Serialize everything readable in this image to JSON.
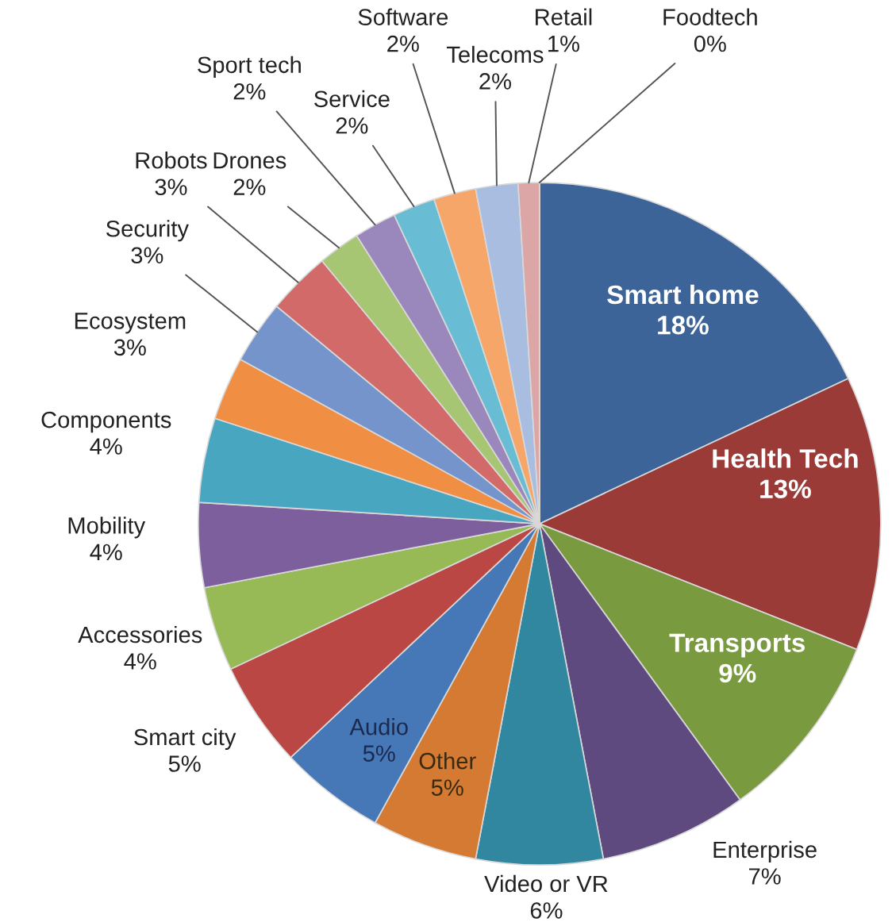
{
  "chart_data": {
    "type": "pie",
    "categories": [
      "Smart home",
      "Health Tech",
      "Transports",
      "Enterprise",
      "Video or VR",
      "Other",
      "Audio",
      "Smart city",
      "Accessories",
      "Mobility",
      "Components",
      "Ecosystem",
      "Security",
      "Robots",
      "Drones",
      "Sport tech",
      "Service",
      "Software",
      "Telecoms",
      "Retail",
      "Foodtech"
    ],
    "values": [
      18,
      13,
      9,
      7,
      6,
      5,
      5,
      5,
      4,
      4,
      4,
      3,
      3,
      3,
      2,
      2,
      2,
      2,
      2,
      1,
      0
    ],
    "value_labels": [
      "18%",
      "13%",
      "9%",
      "7%",
      "6%",
      "5%",
      "5%",
      "5%",
      "4%",
      "4%",
      "4%",
      "3%",
      "3%",
      "3%",
      "2%",
      "2%",
      "2%",
      "2%",
      "2%",
      "1%",
      "0%"
    ],
    "colors": [
      "#3d6499",
      "#9b3b38",
      "#7a9a3f",
      "#5f4a80",
      "#31879f",
      "#d47a33",
      "#4677b6",
      "#bb4744",
      "#97b956",
      "#7c5f9c",
      "#48a6c0",
      "#f08f44",
      "#7594cc",
      "#d26a69",
      "#a7c673",
      "#9a87bb",
      "#68bcd4",
      "#f7a66a",
      "#a8bde0",
      "#dca6a6",
      "#c3d9a4"
    ]
  }
}
